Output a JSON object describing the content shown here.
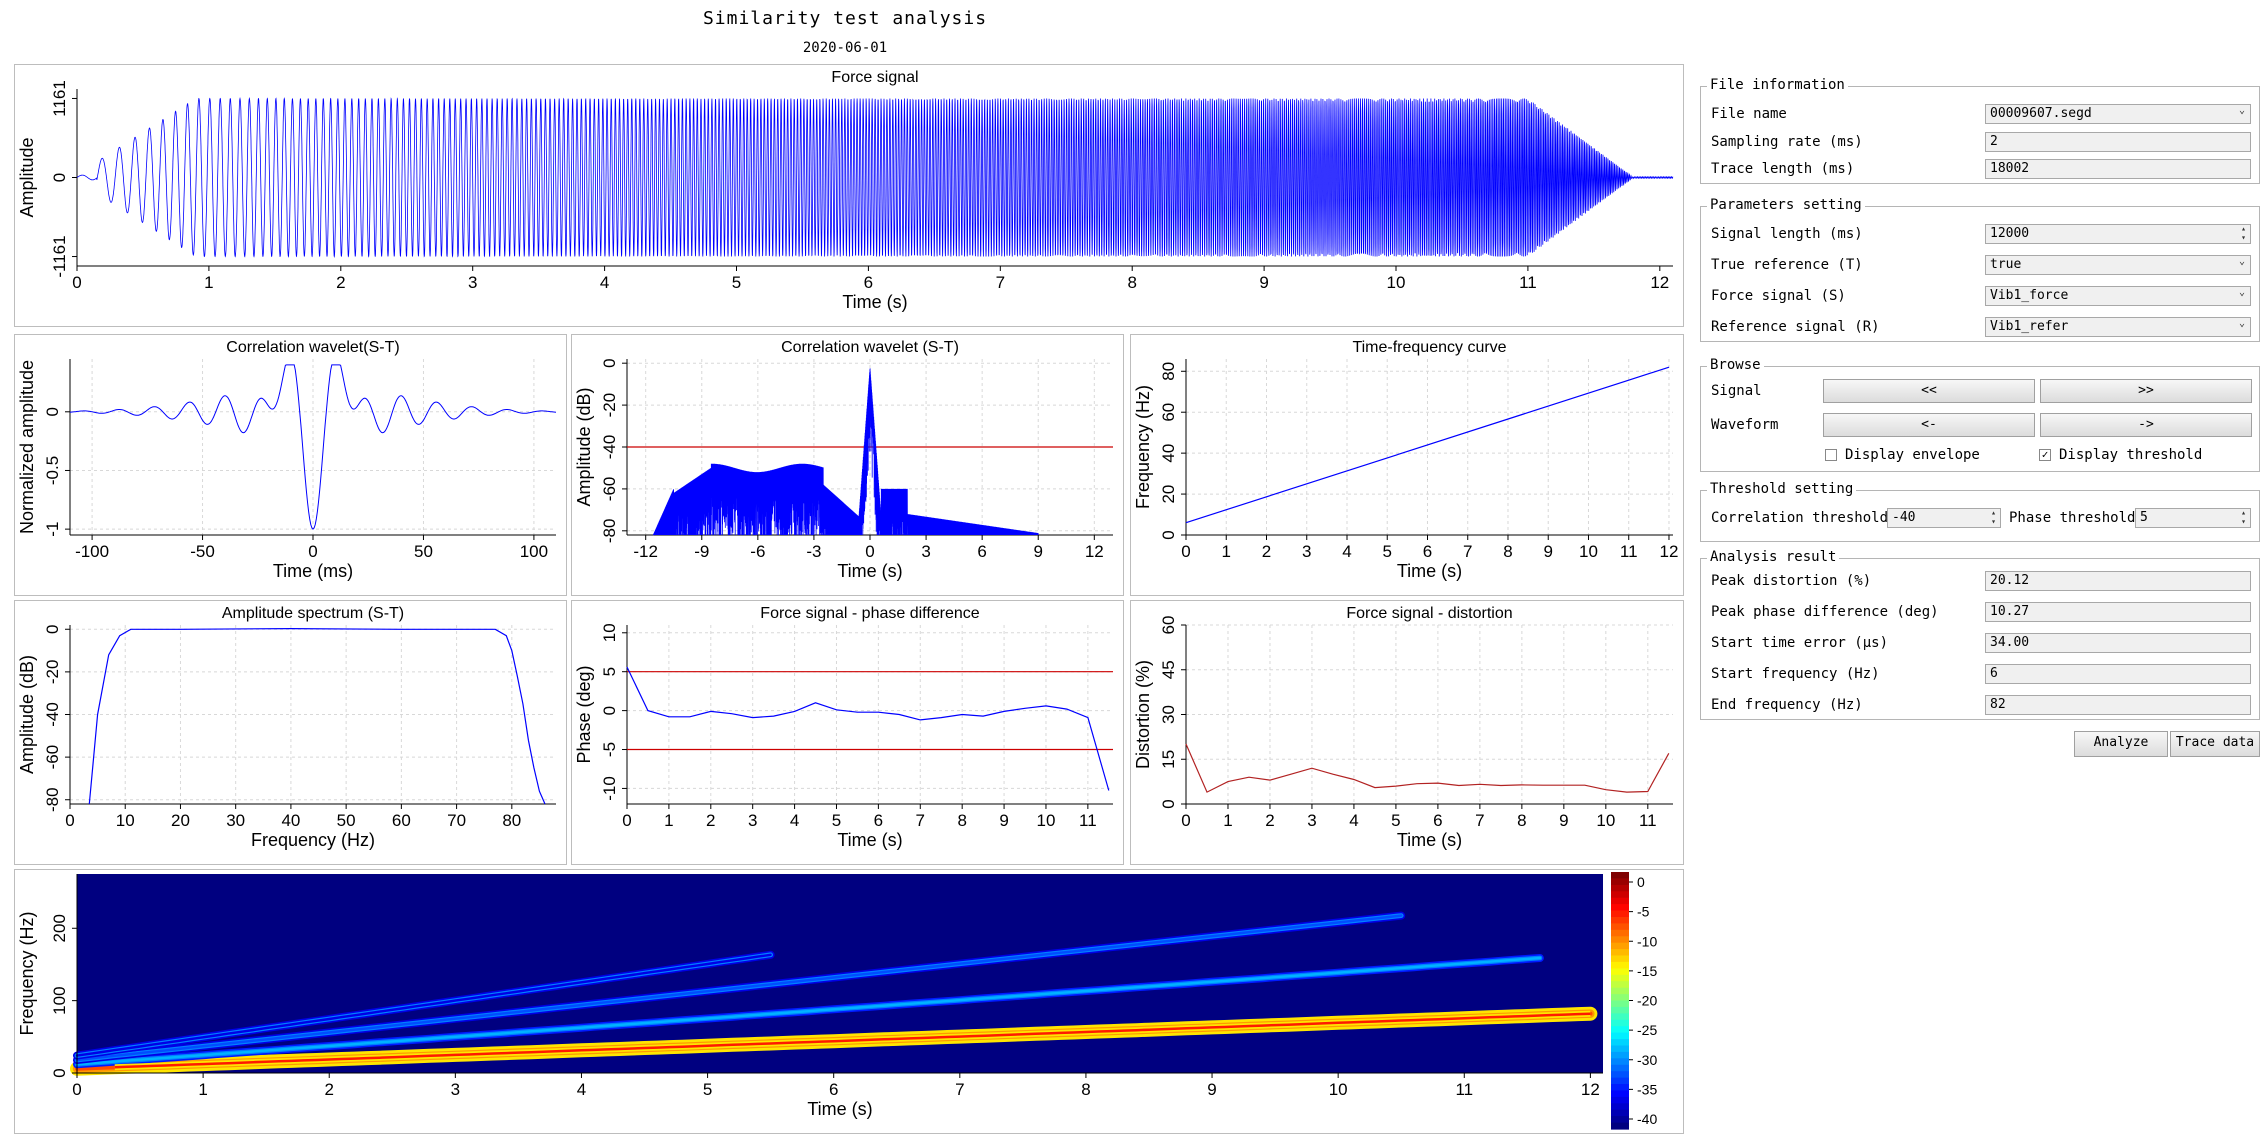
{
  "header": {
    "title": "Similarity test analysis",
    "date": "2020-06-01"
  },
  "file_info": {
    "title": "File information",
    "file_name_label": "File name",
    "file_name": "00009607.segd",
    "sampling_rate_label": "Sampling rate (ms)",
    "sampling_rate": "2",
    "trace_length_label": "Trace length (ms)",
    "trace_length": "18002"
  },
  "parameters": {
    "title": "Parameters setting",
    "signal_length_label": "Signal length (ms)",
    "signal_length": "12000",
    "true_reference_label": "True reference (T)",
    "true_reference": "true",
    "force_signal_label": "Force signal (S)",
    "force_signal": "Vib1_force",
    "reference_signal_label": "Reference signal (R)",
    "reference_signal": "Vib1_refer"
  },
  "browse": {
    "title": "Browse",
    "signal_label": "Signal",
    "signal_prev": "<<",
    "signal_next": ">>",
    "waveform_label": "Waveform",
    "waveform_prev": "<-",
    "waveform_next": "->",
    "display_envelope_label": "Display envelope",
    "display_envelope_checked": false,
    "display_threshold_label": "Display threshold",
    "display_threshold_checked": true
  },
  "threshold": {
    "title": "Threshold setting",
    "correlation_label": "Correlation threshold",
    "correlation": "-40",
    "phase_label": "Phase threshold",
    "phase": "5"
  },
  "results": {
    "title": "Analysis result",
    "peak_distortion_label": "Peak distortion (%)",
    "peak_distortion": "20.12",
    "peak_phase_label": "Peak phase difference (deg)",
    "peak_phase": "10.27",
    "start_time_error_label": "Start time error (μs)",
    "start_time_error": "34.00",
    "start_frequency_label": "Start frequency (Hz)",
    "start_frequency": "6",
    "end_frequency_label": "End frequency (Hz)",
    "end_frequency": "82"
  },
  "actions": {
    "analyze": "Analyze",
    "trace_data": "Trace data"
  },
  "colors": {
    "signal": "#0000ff",
    "threshold": "#cc0000",
    "distortion": "#b22222",
    "grid": "#d8d8d8"
  },
  "chart_data": [
    {
      "id": "force",
      "type": "line",
      "title": "Force signal",
      "xlabel": "Time (s)",
      "ylabel": "Amplitude",
      "xlim": [
        0,
        12.1
      ],
      "ylim": [
        -1300,
        1300
      ],
      "xticks": [
        "0",
        "1",
        "2",
        "3",
        "4",
        "5",
        "6",
        "7",
        "8",
        "9",
        "10",
        "11",
        "12"
      ],
      "yticks": [
        "-1161",
        "0",
        "1161"
      ],
      "peak_amplitude": 1161
    },
    {
      "id": "corr",
      "type": "line",
      "title": "Correlation wavelet(S-T)",
      "xlabel": "Time (ms)",
      "ylabel": "Normalized amplitude",
      "xlim": [
        -110,
        110
      ],
      "ylim": [
        -1.05,
        0.45
      ],
      "xticks": [
        "-100",
        "-50",
        "0",
        "50",
        "100"
      ],
      "yticks": [
        "-1",
        "-0.5",
        "0"
      ]
    },
    {
      "id": "corrdb",
      "type": "line",
      "title": "Correlation wavelet (S-T)",
      "xlabel": "Time (s)",
      "ylabel": "Amplitude (dB)",
      "xlim": [
        -13,
        13
      ],
      "ylim": [
        -82,
        2
      ],
      "threshold": -40,
      "xticks": [
        "-12",
        "-9",
        "-6",
        "-3",
        "0",
        "3",
        "6",
        "9",
        "12"
      ],
      "yticks": [
        "-80",
        "-60",
        "-40",
        "-20",
        "0"
      ]
    },
    {
      "id": "tf",
      "type": "line",
      "title": "Time-frequency curve",
      "xlabel": "Time (s)",
      "ylabel": "Frequency (Hz)",
      "xlim": [
        0,
        12.1
      ],
      "ylim": [
        0,
        86
      ],
      "x": [
        0,
        12
      ],
      "y": [
        6,
        82
      ],
      "xticks": [
        "0",
        "1",
        "2",
        "3",
        "4",
        "5",
        "6",
        "7",
        "8",
        "9",
        "10",
        "11",
        "12"
      ],
      "yticks": [
        "0",
        "20",
        "40",
        "60",
        "80"
      ]
    },
    {
      "id": "amp",
      "type": "line",
      "title": "Amplitude spectrum (S-T)",
      "xlabel": "Frequency (Hz)",
      "ylabel": "Amplitude (dB)",
      "xlim": [
        0,
        88
      ],
      "ylim": [
        -82,
        2
      ],
      "x": [
        3.5,
        5,
        7,
        9,
        11,
        20,
        40,
        60,
        74,
        77,
        79,
        80,
        81,
        82,
        83,
        84,
        85,
        86
      ],
      "y": [
        -82,
        -40,
        -12,
        -3,
        0,
        0,
        0.3,
        0,
        0,
        0,
        -3,
        -10,
        -22,
        -35,
        -52,
        -65,
        -76,
        -82
      ],
      "xticks": [
        "0",
        "10",
        "20",
        "30",
        "40",
        "50",
        "60",
        "70",
        "80"
      ],
      "yticks": [
        "-80",
        "-60",
        "-40",
        "-20",
        "0"
      ]
    },
    {
      "id": "phase",
      "type": "line",
      "title": "Force signal - phase difference",
      "xlabel": "Time (s)",
      "ylabel": "Phase (deg)",
      "xlim": [
        0,
        11.6
      ],
      "ylim": [
        -12,
        11
      ],
      "thresholds": [
        5,
        -5
      ],
      "x": [
        0,
        0.5,
        1,
        1.5,
        2,
        2.5,
        3,
        3.5,
        4,
        4.5,
        5,
        5.5,
        6,
        6.5,
        7,
        7.5,
        8,
        8.5,
        9,
        9.5,
        10,
        10.5,
        11,
        11.5
      ],
      "y": [
        5.6,
        0,
        -0.8,
        -0.8,
        -0.1,
        -0.4,
        -0.9,
        -0.7,
        -0.1,
        1.0,
        0.1,
        -0.2,
        -0.2,
        -0.5,
        -1.2,
        -0.9,
        -0.5,
        -0.7,
        -0.1,
        0.3,
        0.6,
        0.2,
        -0.9,
        -10.27
      ],
      "xticks": [
        "0",
        "1",
        "2",
        "3",
        "4",
        "5",
        "6",
        "7",
        "8",
        "9",
        "10",
        "11"
      ],
      "yticks": [
        "-10",
        "-5",
        "0",
        "5",
        "10"
      ]
    },
    {
      "id": "dist",
      "type": "line",
      "title": "Force signal - distortion",
      "xlabel": "Time (s)",
      "ylabel": "Distortion (%)",
      "xlim": [
        0,
        11.6
      ],
      "ylim": [
        0,
        60
      ],
      "x": [
        0,
        0.5,
        1,
        1.5,
        2,
        2.5,
        3,
        3.5,
        4,
        4.5,
        5,
        5.5,
        6,
        6.5,
        7,
        7.5,
        8,
        8.5,
        9,
        9.5,
        10,
        10.5,
        11,
        11.5
      ],
      "y": [
        20.12,
        4,
        7.5,
        9,
        8,
        10,
        12,
        10,
        8.2,
        5.5,
        6,
        6.8,
        7,
        6.2,
        6.6,
        6.2,
        6.4,
        6.3,
        6.3,
        6.3,
        4.8,
        4,
        4.2,
        17
      ],
      "xticks": [
        "0",
        "1",
        "2",
        "3",
        "4",
        "5",
        "6",
        "7",
        "8",
        "9",
        "10",
        "11"
      ],
      "yticks": [
        "0",
        "15",
        "30",
        "45",
        "60"
      ]
    },
    {
      "id": "spectrogram",
      "type": "heatmap",
      "xlabel": "Time (s)",
      "ylabel": "Frequency (Hz)",
      "xlim": [
        0,
        12.1
      ],
      "ylim": [
        0,
        275
      ],
      "clim": [
        -40,
        0
      ],
      "harmonics": [
        {
          "multiple": 1,
          "level_db": -8,
          "x_end": 12
        },
        {
          "multiple": 2,
          "level_db": -28,
          "x_end": 11.6
        },
        {
          "multiple": 3,
          "level_db": -32,
          "x_end": 10.5
        },
        {
          "multiple": 4,
          "level_db": -36,
          "x_end": 5.5
        }
      ],
      "xticks": [
        "0",
        "1",
        "2",
        "3",
        "4",
        "5",
        "6",
        "7",
        "8",
        "9",
        "10",
        "11",
        "12"
      ],
      "yticks": [
        "0",
        "100",
        "200"
      ],
      "colorbar_ticks": [
        "0",
        "-5",
        "-10",
        "-15",
        "-20",
        "-25",
        "-30",
        "-35",
        "-40"
      ]
    }
  ]
}
